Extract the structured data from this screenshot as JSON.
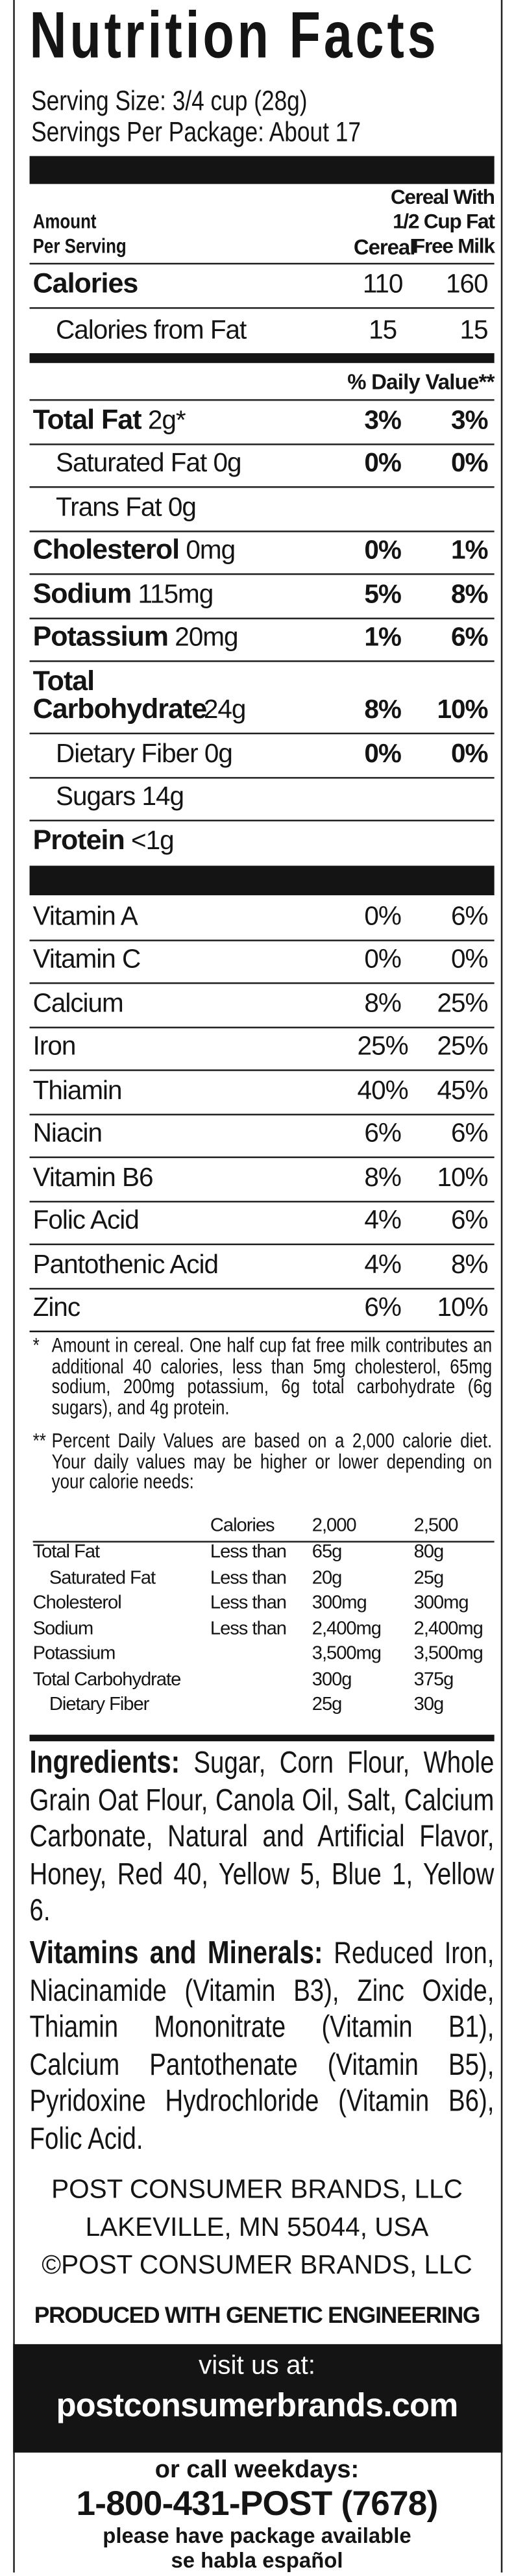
{
  "title": "Nutrition Facts",
  "serving_size": "Serving Size: 3/4 cup (28g)",
  "servings_per_package": "Servings Per Package: About 17",
  "columns": {
    "amount": [
      "Amount",
      "Per Serving"
    ],
    "cereal": "Cereal",
    "with_milk": [
      "Cereal With",
      "1/2 Cup Fat",
      "Free Milk"
    ]
  },
  "calories": {
    "name": "Calories",
    "cereal": "110",
    "with_milk": "160"
  },
  "calories_from_fat": {
    "name": "Calories from Fat",
    "cereal": "15",
    "with_milk": "15"
  },
  "daily_value_header": "% Daily Value**",
  "nutrients": [
    {
      "name": "Total Fat",
      "amount": "2g*",
      "cereal": "3%",
      "with_milk": "3%"
    },
    {
      "name": "Saturated Fat",
      "amount": "0g",
      "cereal": "0%",
      "with_milk": "0%"
    },
    {
      "name": "Trans Fat",
      "amount": "0g"
    },
    {
      "name": "Cholesterol",
      "amount": "0mg",
      "cereal": "0%",
      "with_milk": "1%"
    },
    {
      "name": "Sodium",
      "amount": "115mg",
      "cereal": "5%",
      "with_milk": "8%"
    },
    {
      "name": "Potassium",
      "amount": "20mg",
      "cereal": "1%",
      "with_milk": "6%"
    },
    {
      "name": "Total Carbohydrate",
      "amount": "24g",
      "cereal": "8%",
      "with_milk": "10%"
    },
    {
      "name": "Dietary Fiber",
      "amount": "0g",
      "cereal": "0%",
      "with_milk": "0%"
    },
    {
      "name": "Sugars",
      "amount": "14g"
    },
    {
      "name": "Protein",
      "amount": "<1g"
    }
  ],
  "vitamins": [
    {
      "name": "Vitamin A",
      "cereal": "0%",
      "with_milk": "6%"
    },
    {
      "name": "Vitamin C",
      "cereal": "0%",
      "with_milk": "0%"
    },
    {
      "name": "Calcium",
      "cereal": "8%",
      "with_milk": "25%"
    },
    {
      "name": "Iron",
      "cereal": "25%",
      "with_milk": "25%"
    },
    {
      "name": "Thiamin",
      "cereal": "40%",
      "with_milk": "45%"
    },
    {
      "name": "Niacin",
      "cereal": "6%",
      "with_milk": "6%"
    },
    {
      "name": "Vitamin B6",
      "cereal": "8%",
      "with_milk": "10%"
    },
    {
      "name": "Folic Acid",
      "cereal": "4%",
      "with_milk": "6%"
    },
    {
      "name": "Pantothenic Acid",
      "cereal": "4%",
      "with_milk": "8%"
    },
    {
      "name": "Zinc",
      "cereal": "6%",
      "with_milk": "10%"
    }
  ],
  "footnotes": [
    {
      "marker": "*",
      "text": "Amount in cereal. One half cup fat free milk contributes an additional 40 calories, less than 5mg cholesterol, 65mg sodium, 200mg potassium, 6g total carbohydrate (6g sugars), and 4g protein."
    },
    {
      "marker": "**",
      "text": "Percent Daily Values are based on a 2,000 calorie diet. Your daily values may be higher or lower depending on your calorie needs:"
    }
  ],
  "dv_table": {
    "header": {
      "label": "Calories",
      "d2000": "2,000",
      "d2500": "2,500"
    },
    "rows": [
      {
        "nutrient": "Total Fat",
        "limit": "Less than",
        "d2000": "65g",
        "d2500": "80g"
      },
      {
        "nutrient": "Saturated Fat",
        "limit": "Less than",
        "d2000": "20g",
        "d2500": "25g"
      },
      {
        "nutrient": "Cholesterol",
        "limit": "Less than",
        "d2000": "300mg",
        "d2500": "300mg"
      },
      {
        "nutrient": "Sodium",
        "limit": "Less than",
        "d2000": "2,400mg",
        "d2500": "2,400mg"
      },
      {
        "nutrient": "Potassium",
        "d2000": "3,500mg",
        "d2500": "3,500mg"
      },
      {
        "nutrient": "Total Carbohydrate",
        "d2000": "300g",
        "d2500": "375g"
      },
      {
        "nutrient": "Dietary Fiber",
        "d2000": "25g",
        "d2500": "30g"
      }
    ]
  },
  "ingredients": {
    "heading": "Ingredients:",
    "text": "Sugar, Corn Flour, Whole Grain Oat Flour, Canola Oil, Salt, Calcium Carbonate, Natural and Artificial Flavor, Honey, Red 40, Yellow 5, Blue 1, Yellow 6."
  },
  "vitamins_minerals": {
    "heading": "Vitamins and Minerals:",
    "text": "Reduced Iron, Niacinamide (Vitamin B3), Zinc Oxide, Thiamin Mononitrate (Vitamin B1), Calcium Pantothenate (Vitamin B5), Pyridoxine Hydrochloride (Vitamin B6), Folic Acid."
  },
  "company": [
    "POST CONSUMER BRANDS, LLC",
    "LAKEVILLE, MN 55044, USA",
    "©POST CONSUMER BRANDS, LLC"
  ],
  "ge_notice": "PRODUCED WITH GENETIC ENGINEERING",
  "contact": {
    "visit": "visit us at:",
    "website": "postconsumerbrands.com",
    "call": "or call weekdays:",
    "phone": "1-800-431-POST (7678)",
    "note": [
      "please have package available",
      "se habla español"
    ]
  }
}
